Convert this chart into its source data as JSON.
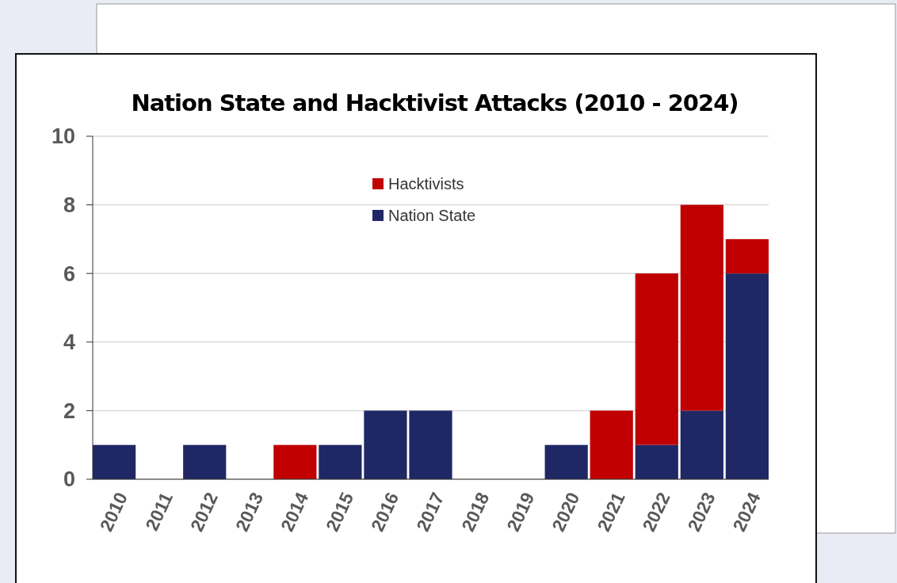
{
  "chart_data": {
    "type": "bar",
    "title": "Nation State and Hacktivist Attacks (2010 - 2024)",
    "categories": [
      "2010",
      "2011",
      "2012",
      "2013",
      "2014",
      "2015",
      "2016",
      "2017",
      "2018",
      "2019",
      "2020",
      "2021",
      "2022",
      "2023",
      "2024"
    ],
    "stacked": true,
    "series": [
      {
        "name": "Nation State",
        "color": "#1f2865",
        "values": [
          1,
          0,
          1,
          0,
          0,
          1,
          2,
          2,
          0,
          0,
          1,
          0,
          1,
          2,
          6
        ]
      },
      {
        "name": "Hacktivists",
        "color": "#c00000",
        "values": [
          0,
          0,
          0,
          0,
          1,
          0,
          0,
          0,
          0,
          0,
          0,
          2,
          5,
          6,
          1
        ]
      }
    ],
    "ylim": [
      0,
      10
    ],
    "yticks": [
      0,
      2,
      4,
      6,
      8,
      10
    ],
    "grid": "y",
    "legend": "top"
  }
}
